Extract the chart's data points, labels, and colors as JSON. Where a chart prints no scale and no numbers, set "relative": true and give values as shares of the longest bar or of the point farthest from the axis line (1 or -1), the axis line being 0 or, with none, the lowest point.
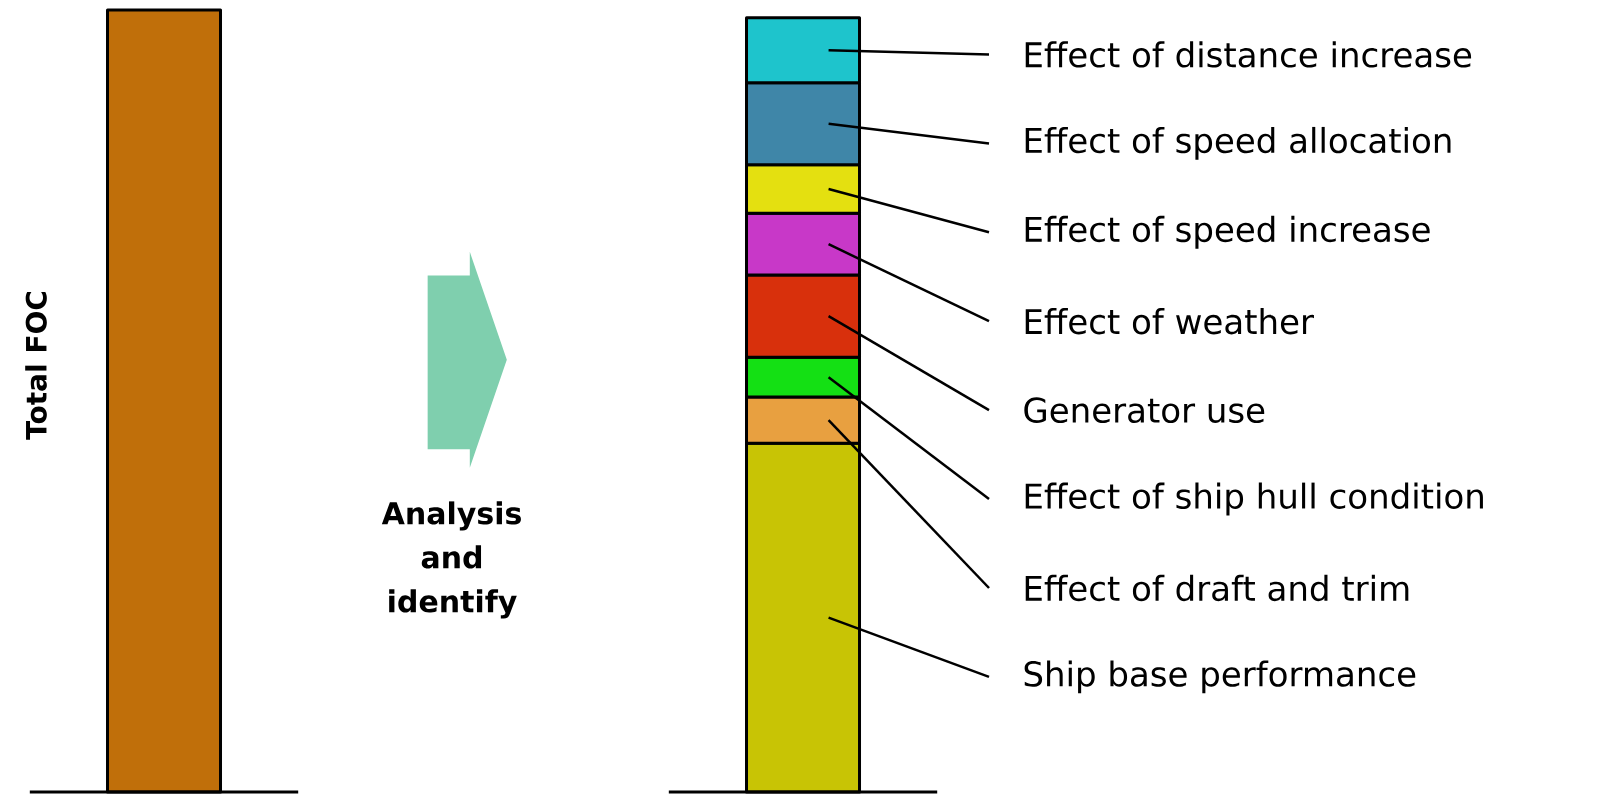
{
  "chart_data": {
    "type": "bar",
    "relative": true,
    "stacked": true,
    "ylabel": "Total FOC",
    "categories": [
      null,
      null
    ],
    "series": [
      {
        "color": "#c06f0a",
        "values": [
          1.0,
          null
        ]
      },
      {
        "name": "Ship base performance",
        "color": "#c8c405",
        "values": [
          null,
          0.446
        ]
      },
      {
        "name": "Effect of draft and trim",
        "color": "#e8a040",
        "values": [
          null,
          0.059
        ]
      },
      {
        "name": "Effect of ship hull condition",
        "color": "#14e014",
        "values": [
          null,
          0.051
        ]
      },
      {
        "name": "Generator use",
        "color": "#d8300c",
        "values": [
          null,
          0.105
        ]
      },
      {
        "name": "Effect of weather",
        "color": "#c838c8",
        "values": [
          null,
          0.079
        ]
      },
      {
        "name": "Effect of speed increase",
        "color": "#e4e010",
        "values": [
          null,
          0.062
        ]
      },
      {
        "name": "Effect of speed allocation",
        "color": "#3f86a8",
        "values": [
          null,
          0.105
        ]
      },
      {
        "name": "Effect of distance increase",
        "color": "#1ec4cc",
        "values": [
          null,
          0.083
        ]
      }
    ],
    "annotations": [
      "Analysis and identify"
    ],
    "legend": "right",
    "ref_lines": [
      {
        "axis": "y",
        "value": 0,
        "color": "#000000"
      }
    ]
  }
}
